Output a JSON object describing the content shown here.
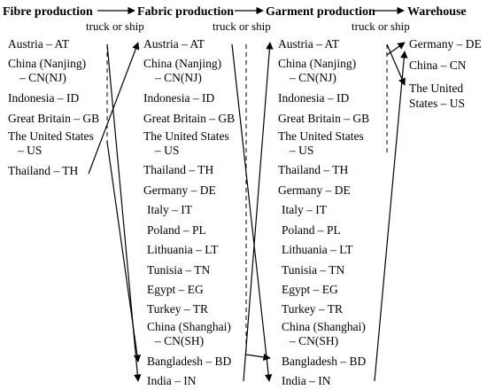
{
  "stages": [
    "Fibre production",
    "Fabric production",
    "Garment production",
    "Warehouse"
  ],
  "transport_label": "truck or ship",
  "columns": {
    "fibre": [
      "Austria – AT",
      "China (Nanjing)",
      "– CN(NJ)",
      "Indonesia – ID",
      "Great Britain – GB",
      "The United States",
      "– US",
      "Thailand – TH"
    ],
    "fabric": [
      "Austria – AT",
      "China (Nanjing)",
      "– CN(NJ)",
      "Indonesia – ID",
      "Great Britain – GB",
      "The United States",
      "– US",
      "Thailand – TH",
      "Germany – DE",
      "Italy – IT",
      "Poland – PL",
      "Lithuania – LT",
      "Tunisia – TN",
      "Egypt – EG",
      "Turkey – TR",
      "China (Shanghai)",
      "– CN(SH)",
      "Bangladesh – BD",
      "India – IN"
    ],
    "garment": [
      "Austria – AT",
      "China (Nanjing)",
      "– CN(NJ)",
      "Indonesia – ID",
      "Great Britain – GB",
      "The United States",
      "– US",
      "Thailand – TH",
      "Germany – DE",
      "Italy – IT",
      "Poland – PL",
      "Lithuania – LT",
      "Tunisia – TN",
      "Egypt – EG",
      "Turkey – TR",
      "China (Shanghai)",
      "– CN(SH)",
      "Bangladesh – BD",
      "India – IN"
    ],
    "warehouse": [
      "Germany – DE",
      "China – CN",
      "The United",
      "States – US"
    ]
  }
}
